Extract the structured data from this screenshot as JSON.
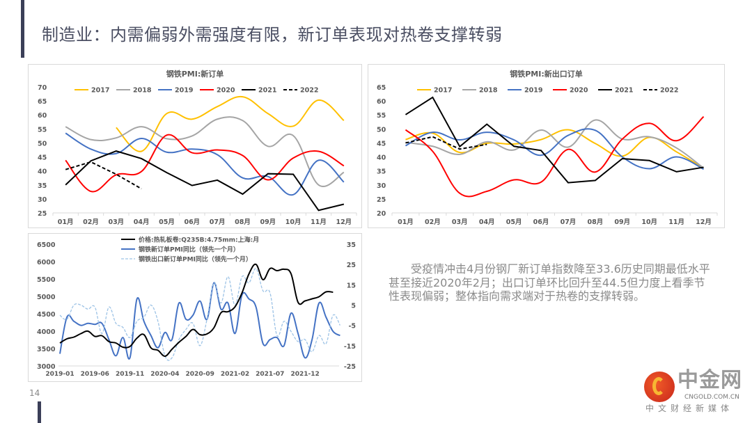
{
  "slide": {
    "title": "制造业：内需偏弱外需强度有限，新订单表现对热卷支撑转弱",
    "page_number": "14",
    "note": "受疫情冲击4月份钢厂新订单指数降至33.6历史同期最低水平甚至接近2020年2月；出口订单环比回升至44.5但力度上看季节性表现偏弱；整体指向需求端对于热卷的支撑转弱。"
  },
  "logo": {
    "name": "中金网",
    "domain": "CNGOLD.COM.CN",
    "tagline": "中文财经新媒体"
  },
  "colors": {
    "2017": "#ffc000",
    "2018": "#a5a5a5",
    "2019": "#4472c4",
    "2020": "#ff0000",
    "2021": "#000000",
    "2022": "#000000",
    "price": "#000000",
    "pmi_yoy": "#4472c4",
    "export_yoy": "#9dc3e6"
  },
  "chart_data": [
    {
      "type": "line",
      "title": "钢铁PMI:新订单",
      "categories": [
        "01月",
        "02月",
        "03月",
        "04月",
        "05月",
        "06月",
        "07月",
        "08月",
        "09月",
        "10月",
        "11月",
        "12月"
      ],
      "ylim": [
        25,
        70
      ],
      "yticks": [
        25,
        30,
        35,
        40,
        45,
        50,
        55,
        60,
        65,
        70
      ],
      "legend": "top",
      "grid": false,
      "series": [
        {
          "name": "2017",
          "style": "smooth",
          "values": [
            null,
            null,
            55.5,
            47,
            60.5,
            58.5,
            63,
            66.5,
            60.5,
            56,
            65.3,
            58
          ]
        },
        {
          "name": "2018",
          "style": "smooth",
          "values": [
            55.8,
            51.2,
            51.8,
            55.8,
            51.5,
            52.5,
            58.5,
            58,
            48.8,
            52.6,
            35,
            39.5
          ]
        },
        {
          "name": "2019",
          "style": "smooth",
          "values": [
            53.5,
            47.8,
            46.2,
            51.6,
            46.7,
            47.8,
            45.8,
            37.5,
            38,
            31.5,
            43.8,
            36
          ]
        },
        {
          "name": "2020",
          "style": "smooth",
          "values": [
            43.8,
            32.7,
            38.6,
            39.8,
            52.8,
            46.5,
            47.5,
            45.5,
            36.8,
            44.6,
            47,
            41.8
          ]
        },
        {
          "name": "2021",
          "style": "straight",
          "values": [
            35,
            43.6,
            47.1,
            44.4,
            39.4,
            34.8,
            36.7,
            31.7,
            39,
            38.8,
            25.9,
            28.1
          ]
        },
        {
          "name": "2022",
          "style": "dashed",
          "values": [
            40.5,
            43.2,
            38.8,
            33.6,
            null,
            null,
            null,
            null,
            null,
            null,
            null,
            null
          ]
        }
      ]
    },
    {
      "type": "line",
      "title": "钢铁PMI:新出口订单",
      "categories": [
        "01月",
        "02月",
        "03月",
        "04月",
        "05月",
        "06月",
        "07月",
        "08月",
        "09月",
        "10月",
        "11月",
        "12月"
      ],
      "ylim": [
        20,
        65
      ],
      "yticks": [
        20,
        25,
        30,
        35,
        40,
        45,
        50,
        55,
        60,
        65
      ],
      "legend": "top",
      "grid": false,
      "series": [
        {
          "name": "2017",
          "style": "smooth",
          "values": [
            46.2,
            48.5,
            41.6,
            44.9,
            44.6,
            46.2,
            49.7,
            44.8,
            40.3,
            47,
            41.8,
            36
          ]
        },
        {
          "name": "2018",
          "style": "smooth",
          "values": [
            45.2,
            43.8,
            40.9,
            45.4,
            42.5,
            49.6,
            43.5,
            53.2,
            46.4,
            47.2,
            43.2,
            36
          ]
        },
        {
          "name": "2019",
          "style": "smooth",
          "values": [
            44,
            48.8,
            46.1,
            48.8,
            46.1,
            40.6,
            47.7,
            49.5,
            40,
            35.8,
            40,
            35.6
          ]
        },
        {
          "name": "2020",
          "style": "smooth",
          "values": [
            49.7,
            42,
            27,
            27.7,
            31.8,
            31,
            42.7,
            34.6,
            46.4,
            52,
            45.8,
            54.4
          ]
        },
        {
          "name": "2021",
          "style": "straight",
          "values": [
            55.1,
            61.3,
            43.7,
            51.7,
            43.8,
            42.3,
            30.8,
            31.6,
            39.4,
            38.7,
            34.7,
            36.3
          ]
        },
        {
          "name": "2022",
          "style": "dashed",
          "values": [
            45,
            47.2,
            42.8,
            44.5,
            null,
            null,
            null,
            null,
            null,
            null,
            null,
            null
          ]
        }
      ]
    },
    {
      "type": "line",
      "title": "",
      "x_start": "2019-01",
      "x_tick_labels": [
        "2019-01",
        "2019-06",
        "2019-11",
        "2020-04",
        "2020-09",
        "2021-02",
        "2021-07",
        "2021-12"
      ],
      "ylim_left": [
        3000,
        6500
      ],
      "yticks_left": [
        3000,
        3500,
        4000,
        4500,
        5000,
        5500,
        6000,
        6500
      ],
      "ylim_right": [
        -25,
        35
      ],
      "yticks_right": [
        -25,
        -15,
        -5,
        5,
        15,
        25,
        35
      ],
      "legend": "top",
      "grid": false,
      "series": [
        {
          "name": "价格:热轧板卷:Q235B:4.75mm:上海:月",
          "axis": "left",
          "style": "smooth",
          "values": [
            3660,
            3780,
            3830,
            3930,
            4000,
            3850,
            3870,
            3700,
            3660,
            3540,
            3560,
            3800,
            3900,
            3520,
            3450,
            3280,
            3480,
            3680,
            3850,
            4050,
            3900,
            3920,
            4100,
            4530,
            4560,
            4700,
            5100,
            5650,
            5920,
            5480,
            5800,
            5740,
            5780,
            5650,
            4830,
            4870,
            4930,
            4990,
            5130,
            5120
          ]
        },
        {
          "name": "钢铁新订单PMI同比（领先一个月）",
          "axis": "right",
          "style": "smooth",
          "values": [
            -19,
            -1,
            -3,
            -5,
            -4,
            -4.5,
            -4,
            -12,
            -20,
            -11,
            -21,
            8,
            -3,
            -10,
            -16,
            -8.5,
            -12,
            6,
            -2,
            0,
            7,
            -2,
            16,
            3,
            6,
            -9,
            10,
            8,
            4,
            -14,
            -12,
            -11,
            -15,
            1,
            -9,
            -21,
            -12,
            6,
            -1,
            -8,
            -10
          ]
        },
        {
          "name": "钢铁出口新订单PMI同比（领先一个月）",
          "axis": "right",
          "style": "dashed",
          "values": [
            0,
            -2,
            5,
            5,
            3,
            4,
            -9,
            4,
            -4,
            -6,
            -11,
            -3,
            -1,
            5,
            -3,
            -20,
            -21,
            -12,
            -7,
            -4,
            -15,
            -2,
            16,
            6,
            19,
            5,
            19,
            16,
            23,
            12,
            11,
            -10,
            -3,
            -8,
            -13,
            -12,
            -18,
            -10,
            -14,
            0,
            -5
          ]
        }
      ]
    }
  ]
}
